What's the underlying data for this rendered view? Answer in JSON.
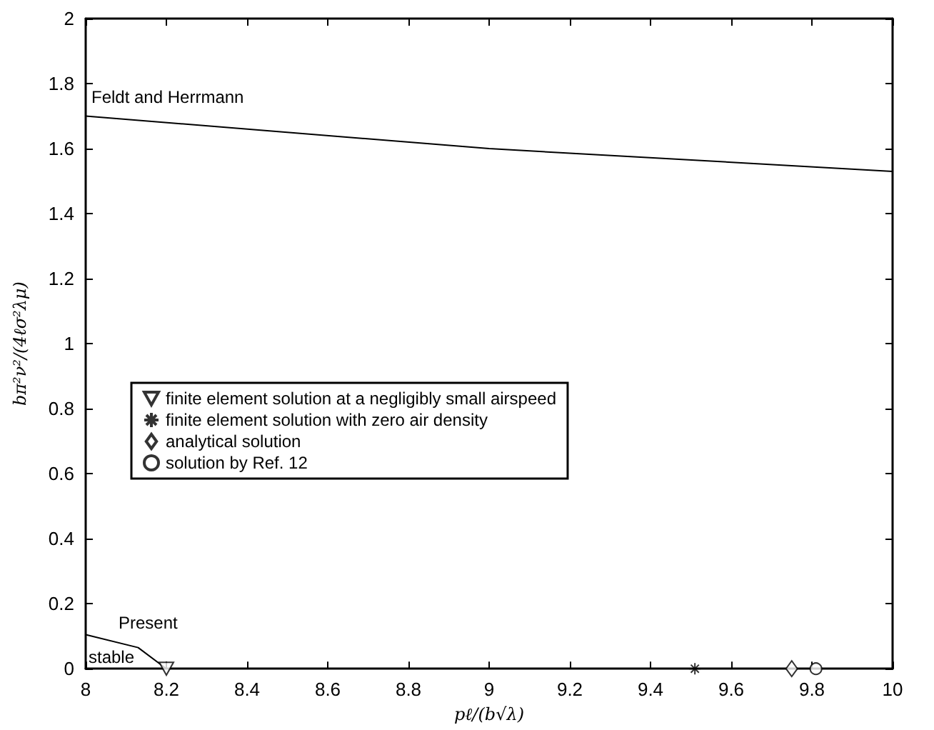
{
  "chart_data": {
    "type": "line",
    "xlabel": "pℓ/(b√λ)",
    "ylabel": "bπ²ν²/(4ℓσ²λμ)",
    "xlim": [
      8,
      10
    ],
    "xticks": [
      8,
      8.2,
      8.4,
      8.6,
      8.8,
      9,
      9.2,
      9.4,
      9.6,
      9.8,
      10
    ],
    "ylim": [
      0,
      2
    ],
    "yticks": [
      0,
      0.2,
      0.4,
      0.6,
      0.8,
      1,
      1.2,
      1.4,
      1.6,
      1.8,
      2
    ],
    "grid": false,
    "legend": "left",
    "series": [
      {
        "color": "#000000",
        "marker": "none",
        "x": [
          8,
          9,
          10
        ],
        "values": [
          1.7,
          1.6,
          1.53
        ]
      },
      {
        "color": "#000000",
        "marker": "none",
        "x": [
          8,
          8.13,
          8.2
        ],
        "values": [
          0.105,
          0.065,
          0
        ]
      },
      {
        "type": "scatter",
        "name": "finite element solution at a negligibly small airspeed",
        "color": "#000000",
        "marker": "triangle",
        "x": [
          8.2
        ],
        "values": [
          0
        ]
      },
      {
        "type": "scatter",
        "name": "finite element solution with zero air density",
        "color": "#000000",
        "marker": "cross",
        "x": [
          9.51
        ],
        "values": [
          0
        ]
      },
      {
        "type": "scatter",
        "name": "analytical solution",
        "color": "#000000",
        "marker": "diamond",
        "x": [
          9.75
        ],
        "values": [
          0
        ]
      },
      {
        "type": "scatter",
        "name": "solution by Ref. 12",
        "color": "#000000",
        "marker": "circle",
        "x": [
          9.81
        ],
        "values": [
          0
        ]
      }
    ],
    "annotations": [
      "Feldt and Herrmann",
      "Present",
      "stable"
    ]
  }
}
